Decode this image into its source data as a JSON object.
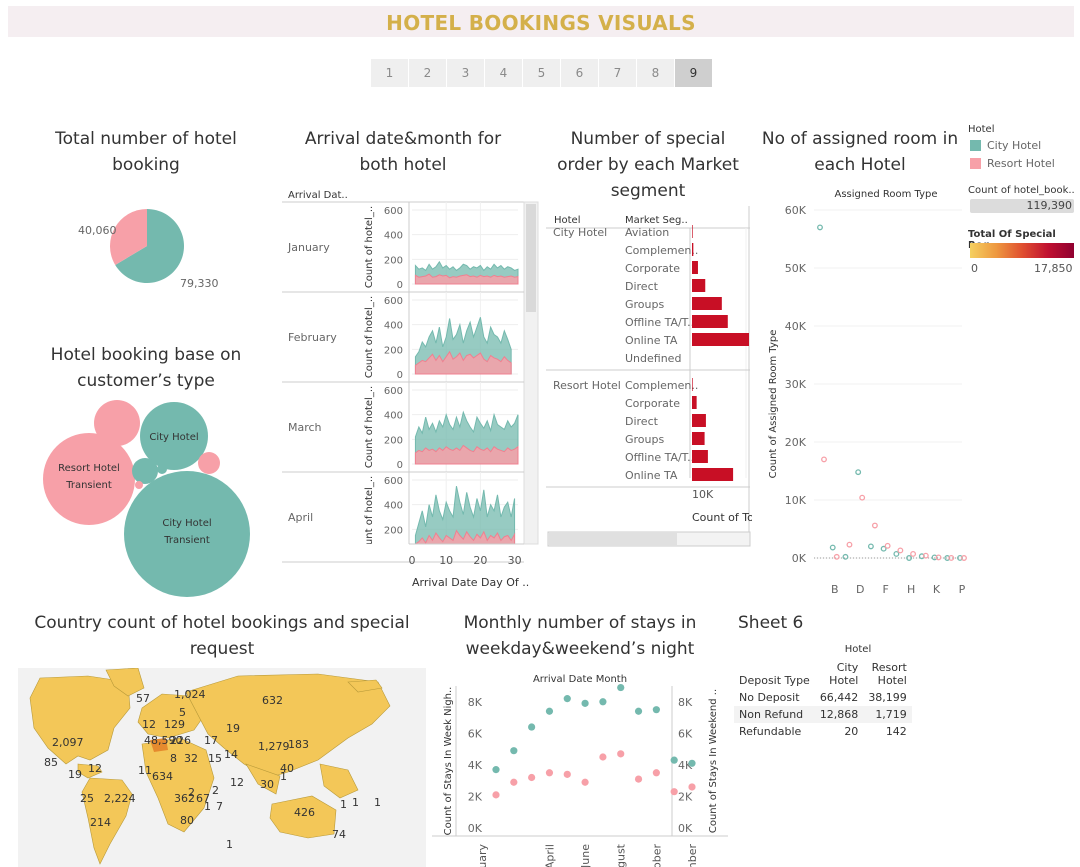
{
  "header": {
    "title": "HOTEL BOOKINGS VISUALS"
  },
  "pager": {
    "pages": [
      "1",
      "2",
      "3",
      "4",
      "5",
      "6",
      "7",
      "8",
      "9"
    ],
    "active": "9"
  },
  "colors": {
    "city": "#74b9ae",
    "resort": "#f7a0a8",
    "bar": "#c80f25",
    "map_fill": "#f3c758",
    "map_dark": "#e58a2e"
  },
  "titles": {
    "pie": "Total number of hotel booking",
    "area": "Arrival date&month for both hotel",
    "bars": "Number of special order by each Market segment",
    "scatter": "No of assigned room in each Hotel",
    "bubbles": "Hotel booking base on customer’s type",
    "map": "Country count of hotel bookings and special request",
    "stays": "Monthly number of stays in weekday&weekend’s night",
    "sheet6": "Sheet 6"
  },
  "legend": {
    "hotel_title": "Hotel",
    "items": [
      "City Hotel",
      "Resort Hotel"
    ],
    "count_title": "Count of hotel_book..",
    "count_value": "119,390",
    "special_title": "Total Of Special Req..",
    "special_min": "0",
    "special_max": "17,850"
  },
  "chart_data": [
    {
      "type": "pie",
      "slices": [
        {
          "name": "City Hotel",
          "value": 79330,
          "label": "79,330"
        },
        {
          "name": "Resort Hotel",
          "value": 40060,
          "label": "40,060"
        }
      ]
    },
    {
      "type": "area",
      "row_header": "Arrival Dat..",
      "ylabel": "Count of hotel_..",
      "xlabel": "Arrival Date Day Of ..",
      "ylim": [
        0,
        600
      ],
      "yticks": [
        "600",
        "400",
        "200",
        "0"
      ],
      "xticks": [
        "0",
        "10",
        "20",
        "30"
      ],
      "months": [
        "January",
        "February",
        "March",
        "April"
      ],
      "city": [
        [
          150,
          120,
          130,
          110,
          160,
          120,
          140,
          180,
          130,
          150,
          120,
          140,
          110,
          130,
          160,
          150,
          120,
          140,
          130,
          150,
          110,
          140,
          120,
          160,
          130,
          150,
          120,
          140,
          130,
          110,
          120
        ],
        [
          140,
          180,
          260,
          220,
          300,
          350,
          250,
          380,
          220,
          300,
          450,
          280,
          320,
          400,
          250,
          350,
          420,
          300,
          380,
          460,
          300,
          250,
          380,
          320,
          300,
          250,
          350,
          280,
          200
        ],
        [
          220,
          300,
          250,
          380,
          280,
          330,
          260,
          350,
          300,
          400,
          320,
          280,
          380,
          300,
          420,
          350,
          300,
          260,
          380,
          330,
          290,
          350,
          270,
          400,
          320,
          300,
          280,
          350,
          300,
          330,
          400
        ],
        [
          150,
          250,
          350,
          220,
          400,
          300,
          480,
          350,
          280,
          420,
          350,
          300,
          550,
          420,
          320,
          500,
          380,
          300,
          450,
          350,
          520,
          300,
          400,
          350,
          480,
          300,
          380,
          420,
          300,
          450
        ]
      ],
      "resort": [
        [
          70,
          55,
          60,
          65,
          80,
          55,
          60,
          75,
          65,
          70,
          50,
          60,
          55,
          65,
          70,
          75,
          60,
          65,
          55,
          70,
          60,
          65,
          55,
          70,
          60,
          65,
          55,
          60,
          65,
          55,
          60
        ],
        [
          70,
          90,
          110,
          100,
          130,
          160,
          110,
          150,
          100,
          140,
          180,
          120,
          140,
          170,
          110,
          150,
          160,
          130,
          150,
          170,
          120,
          100,
          150,
          130,
          120,
          100,
          140,
          110,
          90
        ],
        [
          90,
          110,
          100,
          130,
          110,
          120,
          100,
          130,
          110,
          140,
          120,
          110,
          130,
          110,
          150,
          130,
          110,
          100,
          140,
          120,
          110,
          130,
          100,
          140,
          120,
          110,
          100,
          130,
          110,
          120,
          140
        ],
        [
          80,
          100,
          130,
          90,
          150,
          110,
          170,
          130,
          100,
          150,
          130,
          110,
          190,
          150,
          120,
          180,
          140,
          110,
          160,
          130,
          180,
          110,
          150,
          130,
          170,
          110,
          140,
          150,
          110,
          160
        ]
      ]
    },
    {
      "type": "bar",
      "col_headers": [
        "Hotel",
        "Market Seg.."
      ],
      "x_tick": "10K",
      "xlabel": "Count of To",
      "groups": [
        {
          "hotel": "City Hotel",
          "segments": [
            "Aviation",
            "Complemen..",
            "Corporate",
            "Direct",
            "Groups",
            "Offline TA/T..",
            "Online TA",
            "Undefined"
          ],
          "values": [
            100,
            200,
            900,
            2000,
            4500,
            5400,
            8600,
            0
          ]
        },
        {
          "hotel": "Resort Hotel",
          "segments": [
            "Complemen..",
            "Corporate",
            "Direct",
            "Groups",
            "Offline TA/T..",
            "Online TA"
          ],
          "values": [
            100,
            700,
            2100,
            1900,
            2400,
            6200
          ]
        }
      ]
    },
    {
      "type": "scatter",
      "title": "Assigned Room Type",
      "ylabel": "Count of Assigned Room Type",
      "yticks": [
        "60K",
        "50K",
        "40K",
        "30K",
        "20K",
        "10K",
        "0K"
      ],
      "ylim": [
        0,
        60000
      ],
      "categories": [
        "A",
        "B",
        "C",
        "D",
        "E",
        "F",
        "G",
        "H",
        "I",
        "K",
        "L",
        "P"
      ],
      "xtick_labels": [
        "B",
        "D",
        "F",
        "H",
        "K",
        "P"
      ],
      "city": [
        57000,
        1800,
        200,
        14800,
        2000,
        1600,
        700,
        0,
        300,
        100,
        0,
        10
      ],
      "resort": [
        17000,
        200,
        2300,
        10400,
        5600,
        2100,
        1300,
        700,
        400,
        100,
        10,
        0
      ]
    },
    {
      "type": "bubble",
      "bubbles": [
        {
          "label1": "City Hotel",
          "label2": "Transient",
          "series": "City Hotel",
          "value": 62000
        },
        {
          "label1": "Resort Hotel",
          "label2": "Transient",
          "series": "Resort Hotel",
          "value": 27000
        },
        {
          "label1": "City Hotel",
          "label2": "",
          "series": "City Hotel",
          "value": 16000
        },
        {
          "label1": "",
          "label2": "",
          "series": "Resort Hotel",
          "value": 7500
        },
        {
          "label1": "",
          "label2": "",
          "series": "City Hotel",
          "value": 2300
        },
        {
          "label1": "",
          "label2": "",
          "series": "Resort Hotel",
          "value": 1500
        },
        {
          "label1": "",
          "label2": "",
          "series": "City Hotel",
          "value": 280
        },
        {
          "label1": "",
          "label2": "",
          "series": "Resort Hotel",
          "value": 270
        }
      ]
    },
    {
      "type": "line",
      "title": "Arrival Date Month",
      "ylabel_left": "Count of Stays In Week Nigh..",
      "ylabel_right": "Count of Stays In Weekend ..",
      "yticks": [
        "8K",
        "6K",
        "4K",
        "2K",
        "0K"
      ],
      "ylim": [
        0,
        9000
      ],
      "xtick_labels": [
        "ruary",
        "April",
        "June",
        "gust",
        "tober",
        "mber"
      ],
      "weekday": [
        3700,
        4900,
        6400,
        7400,
        8200,
        7900,
        8000,
        8900,
        7400,
        7500,
        4300,
        4100
      ],
      "weekend": [
        2100,
        2900,
        3200,
        3500,
        3400,
        2900,
        4500,
        4700,
        3100,
        3500,
        2300,
        2600
      ]
    },
    {
      "type": "table",
      "hotel_header": "Hotel",
      "row_header": "Deposit Type",
      "columns": [
        "City Hotel",
        "Resort Hotel"
      ],
      "rows": [
        {
          "name": "No Deposit",
          "values": [
            "66,442",
            "38,199"
          ]
        },
        {
          "name": "Non Refund",
          "values": [
            "12,868",
            "1,719"
          ]
        },
        {
          "name": "Refundable",
          "values": [
            "20",
            "142"
          ]
        }
      ]
    }
  ],
  "map_labels": [
    "632",
    "1,024",
    "57",
    "5",
    "12",
    "129",
    "48,590",
    "226",
    "17",
    "19",
    "1,279",
    "183",
    "2,097",
    "85",
    "19",
    "12",
    "11",
    "634",
    "8",
    "32",
    "15",
    "14",
    "40",
    "1",
    "2",
    "30",
    "12",
    "2,224",
    "25",
    "362",
    "67",
    "2",
    "1",
    "7",
    "80",
    "214",
    "426",
    "1",
    "1",
    "1",
    "74",
    "1"
  ]
}
